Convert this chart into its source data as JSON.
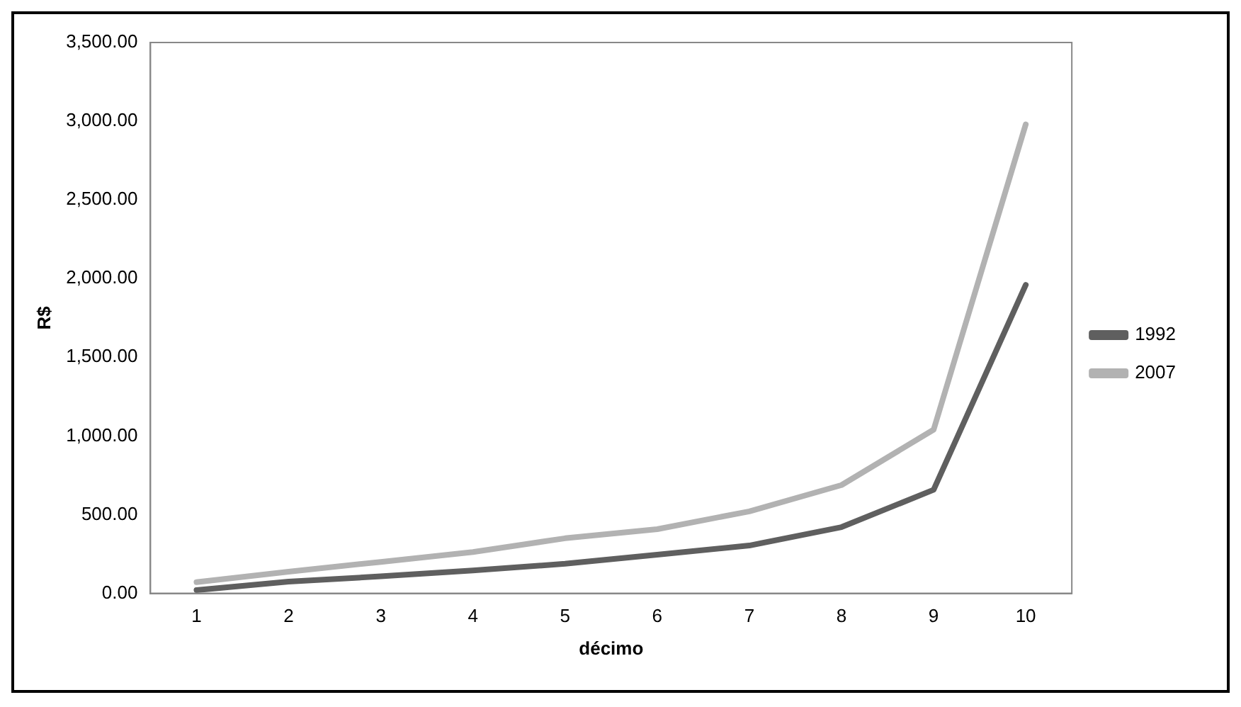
{
  "chart_data": {
    "type": "line",
    "xlabel": "décimo",
    "ylabel": "R$",
    "categories": [
      "1",
      "2",
      "3",
      "4",
      "5",
      "6",
      "7",
      "8",
      "9",
      "10"
    ],
    "series": [
      {
        "name": "1992",
        "color": "#5f5f5f",
        "values": [
          21,
          75,
          108,
          146,
          188,
          246,
          304,
          421,
          658,
          1960
        ]
      },
      {
        "name": "2007",
        "color": "#b2b2b2",
        "values": [
          71,
          138,
          200,
          263,
          350,
          408,
          521,
          688,
          1040,
          2980
        ]
      }
    ],
    "ylim": [
      0,
      3500
    ],
    "yticks": [
      {
        "value": 0,
        "label": "0.00"
      },
      {
        "value": 500,
        "label": "500.00"
      },
      {
        "value": 1000,
        "label": "1,000.00"
      },
      {
        "value": 1500,
        "label": "1,500.00"
      },
      {
        "value": 2000,
        "label": "2,000.00"
      },
      {
        "value": 2500,
        "label": "2,500.00"
      },
      {
        "value": 3000,
        "label": "3,000.00"
      },
      {
        "value": 3500,
        "label": "3,500.00"
      }
    ],
    "grid": false,
    "legend": "right",
    "marker": "none",
    "line_style": "solid"
  }
}
